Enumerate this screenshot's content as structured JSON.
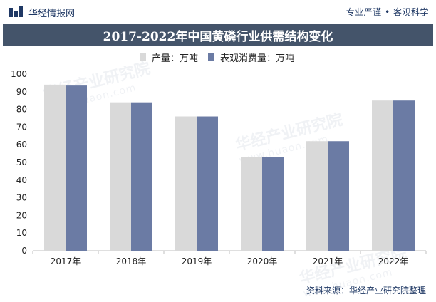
{
  "header": {
    "brand_name": "华经情报网",
    "logo_icon": "bar-logo-icon",
    "tagline": "专业严谨 • 客观科学"
  },
  "title": "2017-2022年中国黄磷行业供需结构变化",
  "source": "资料来源：华经产业研究院整理",
  "watermark": {
    "text": "华经产业研究院",
    "url": "www.huaon.com"
  },
  "colors": {
    "title_bg": "#44546a",
    "production": "#d9d9d9",
    "consumption": "#6b7ba4",
    "brand": "#1f3864"
  },
  "chart_data": {
    "type": "bar",
    "categories": [
      "2017年",
      "2018年",
      "2019年",
      "2020年",
      "2021年",
      "2022年"
    ],
    "series": [
      {
        "name": "产量：万吨",
        "values": [
          94,
          84,
          76,
          53,
          62,
          85
        ]
      },
      {
        "name": "表观消费量：万吨",
        "values": [
          93.5,
          84,
          76,
          53,
          62,
          85
        ]
      }
    ],
    "ylim": [
      0,
      100
    ],
    "yticks": [
      0,
      10,
      20,
      30,
      40,
      50,
      60,
      70,
      80,
      90,
      100
    ],
    "grid": false,
    "legend_position": "top"
  }
}
